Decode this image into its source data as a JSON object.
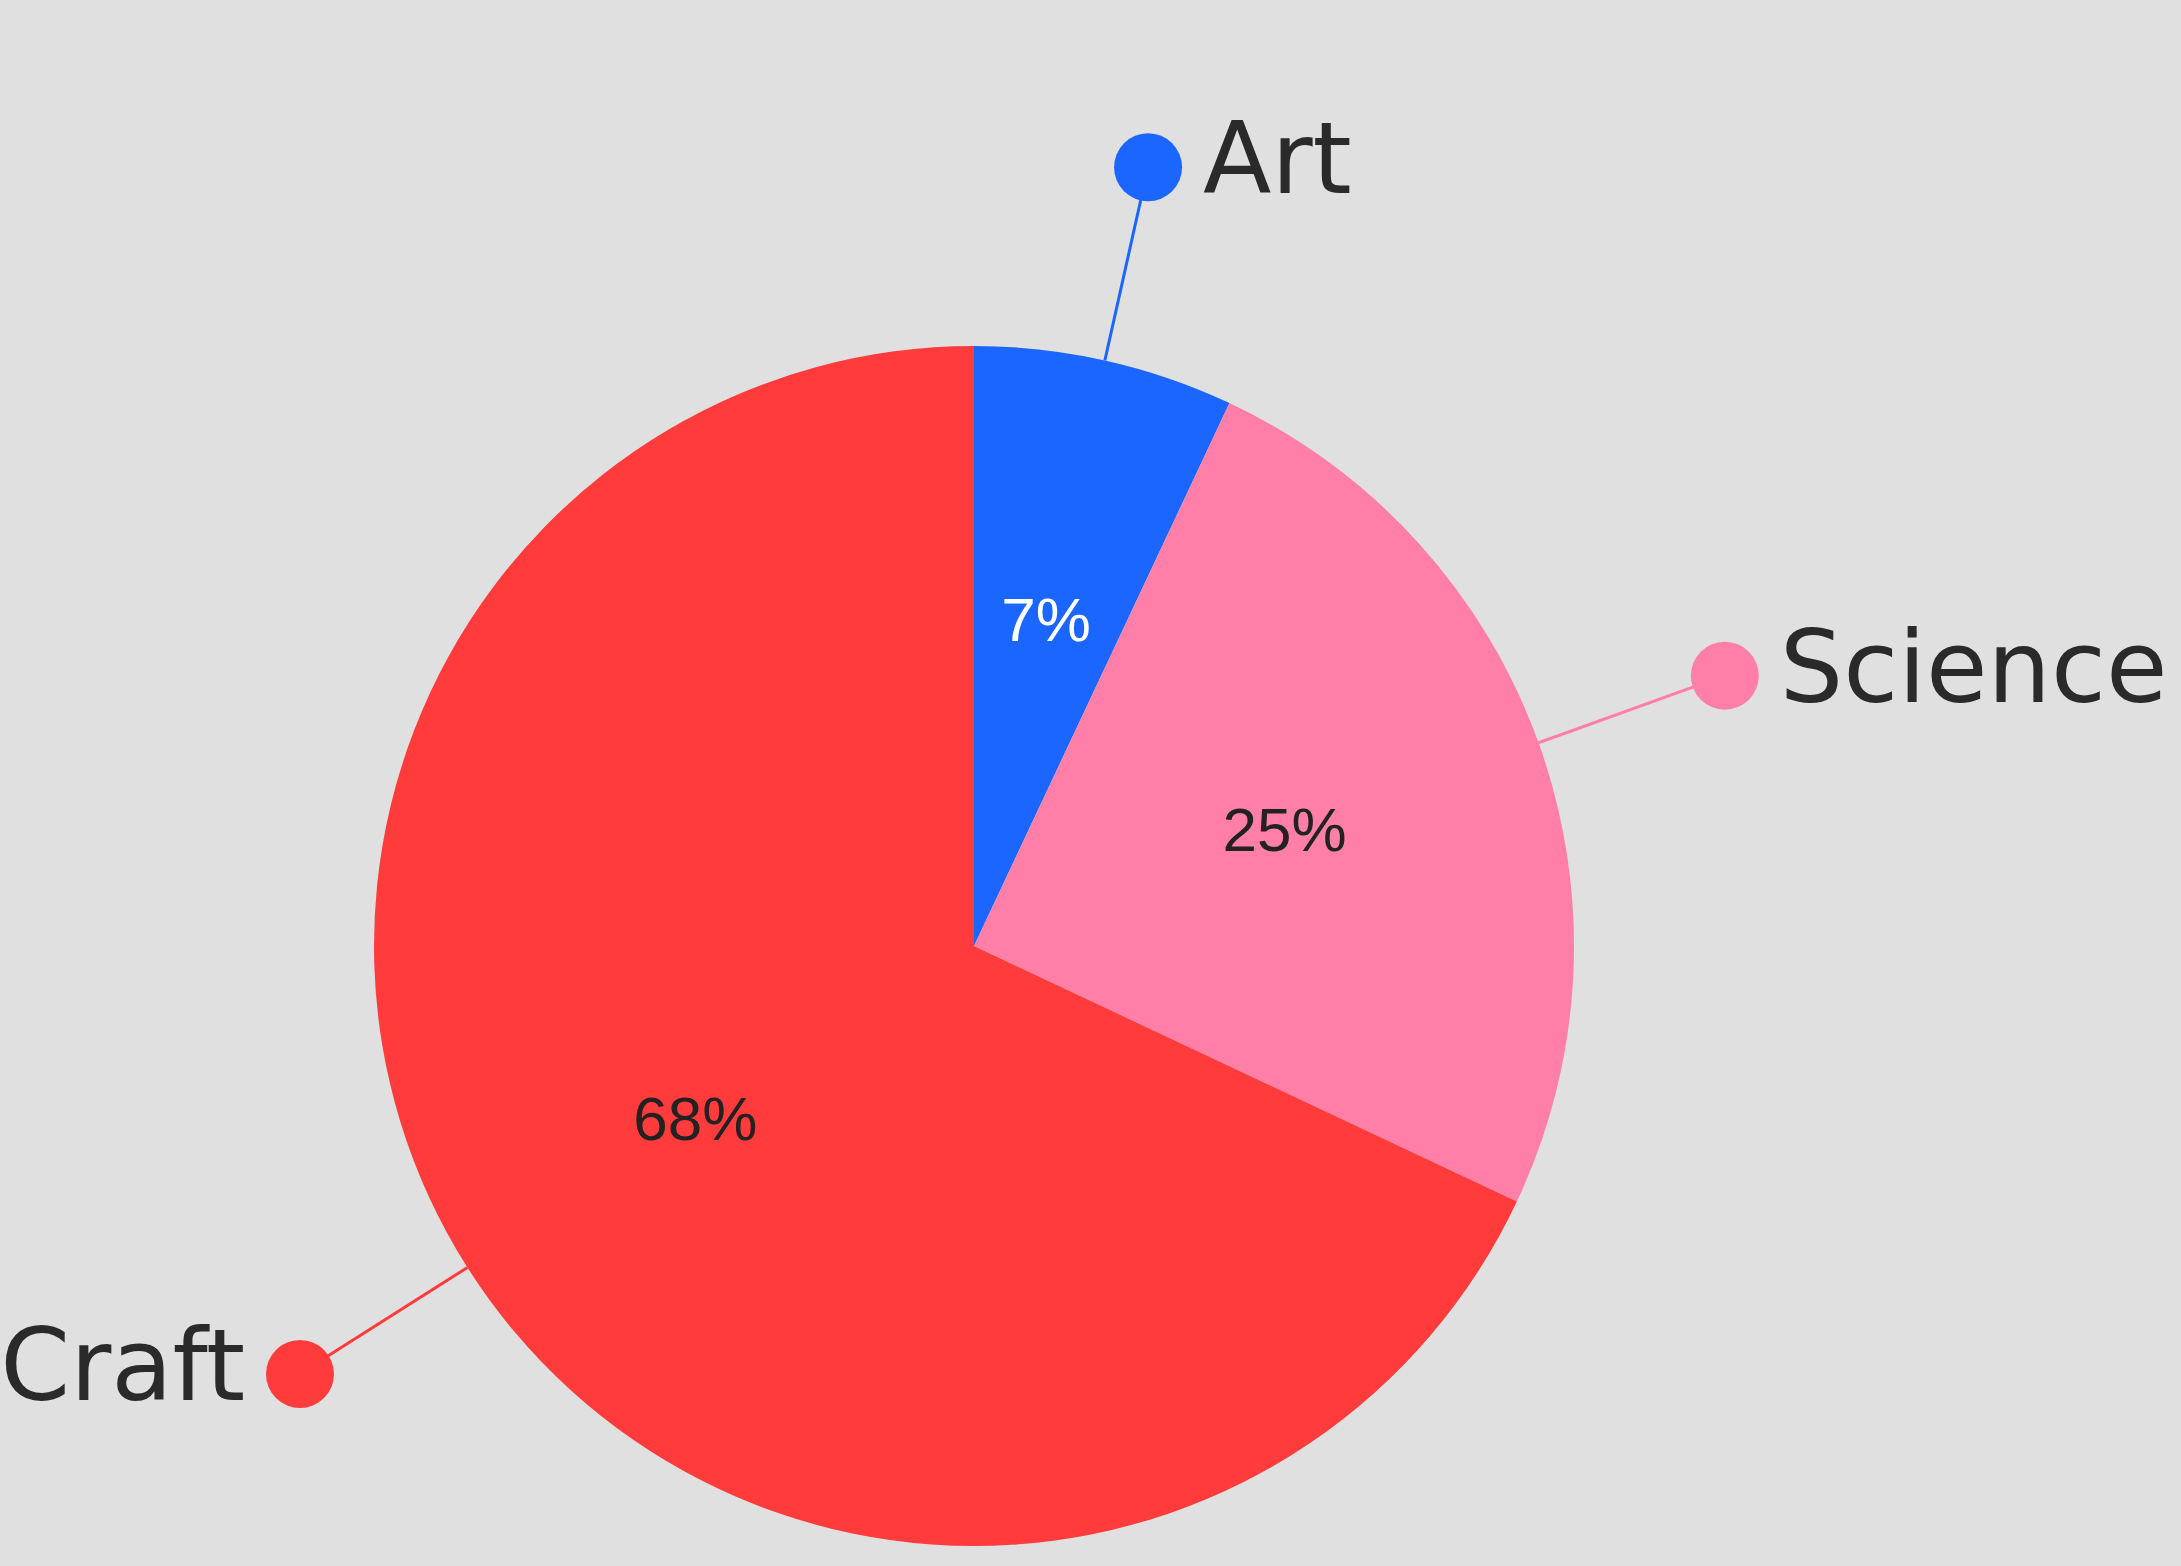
{
  "chart_data": {
    "type": "pie",
    "categories": [
      "Art",
      "Science",
      "Craft"
    ],
    "values": [
      7,
      25,
      68
    ],
    "colors": [
      "#1a66ff",
      "#ff7fa8",
      "#ff3b3b"
    ],
    "value_labels": [
      "7%",
      "25%",
      "68%"
    ],
    "legend": "right"
  }
}
